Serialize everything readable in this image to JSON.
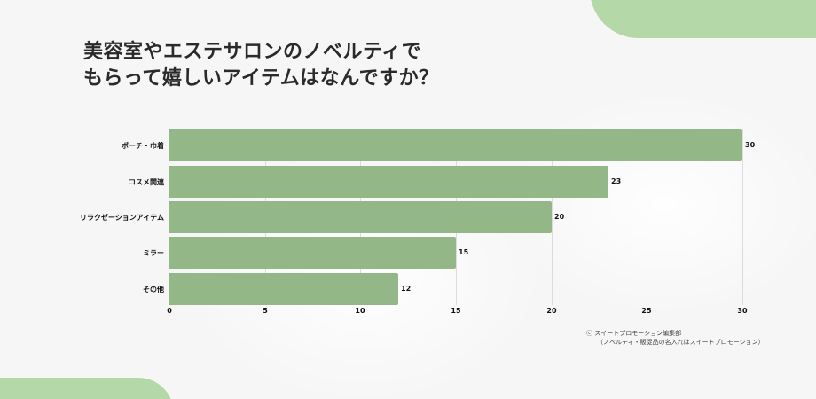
{
  "title": {
    "line1": "美容室やエステサロンのノベルティで",
    "line2": "もらって嬉しいアイテムはなんですか？"
  },
  "colors": {
    "bar": "#93b787",
    "accent": "#b5d8a8",
    "background": "#f6f6f6"
  },
  "chart_data": {
    "type": "bar",
    "orientation": "horizontal",
    "title": "美容室やエステサロンのノベルティでもらって嬉しいアイテムはなんですか？",
    "categories": [
      "ポーチ・巾着",
      "コスメ関連",
      "リラクゼーションアイテム",
      "ミラー",
      "その他"
    ],
    "values": [
      30,
      23,
      20,
      15,
      12
    ],
    "xlabel": "",
    "ylabel": "",
    "xlim": [
      0,
      30
    ],
    "xticks": [
      "0",
      "5",
      "10",
      "15",
      "20",
      "25",
      "30"
    ],
    "grid": true,
    "data_labels": true,
    "legend": null
  },
  "credit": {
    "line1": "ⓒ スイートプロモーション編集部",
    "line2": "（ノベルティ・販促品の名入れはスイートプロモーション）"
  }
}
